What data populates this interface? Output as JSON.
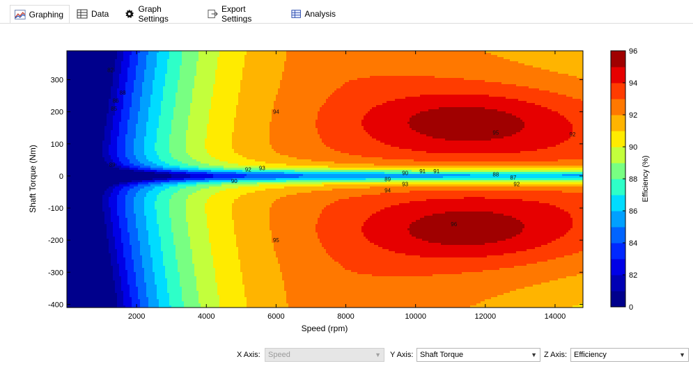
{
  "tabs": [
    {
      "label": "Graphing",
      "icon": "line-graph-icon",
      "active": true
    },
    {
      "label": "Data",
      "icon": "table-icon",
      "active": false
    },
    {
      "label": "Graph Settings",
      "icon": "gear-icon",
      "active": false
    },
    {
      "label": "Export Settings",
      "icon": "export-icon",
      "active": false
    },
    {
      "label": "Analysis",
      "icon": "analysis-icon",
      "active": false
    }
  ],
  "controls": {
    "x_axis_label": "X Axis:",
    "x_axis_value": "Speed",
    "y_axis_label": "Y Axis:",
    "y_axis_value": "Shaft Torque",
    "z_axis_label": "Z Axis:",
    "z_axis_value": "Efficiency"
  },
  "chart_data": {
    "type": "heatmap",
    "title": "",
    "xlabel": "Speed  (rpm)",
    "ylabel": "Shaft Torque  (Nm)",
    "colorbar_label": "Efficiency (%)",
    "xlim": [
      0,
      14800
    ],
    "ylim": [
      -410,
      390
    ],
    "x_ticks": [
      2000,
      4000,
      6000,
      8000,
      10000,
      12000,
      14000
    ],
    "y_ticks": [
      300,
      200,
      100,
      0,
      -100,
      -200,
      -300,
      -400
    ],
    "colorbar_ticks": [
      "96",
      "94",
      "92",
      "90",
      "88",
      "86",
      "84",
      "82",
      "0"
    ],
    "contour_levels": [
      0,
      82,
      83,
      84,
      85,
      86,
      87,
      88,
      89,
      90,
      91,
      92,
      93,
      94,
      95,
      96
    ],
    "level_colors": [
      "#00008c",
      "#0000b4",
      "#0000e6",
      "#0028ff",
      "#0064ff",
      "#00a0ff",
      "#00dcff",
      "#2effc8",
      "#78ff82",
      "#c3ff3c",
      "#ffeb00",
      "#ffb400",
      "#ff7800",
      "#ff3c00",
      "#e60000",
      "#a00000"
    ],
    "key_points": [
      {
        "speed": 500,
        "torque": 0,
        "efficiency": 0
      },
      {
        "speed": 1500,
        "torque": 0,
        "efficiency": 88
      },
      {
        "speed": 2500,
        "torque": 0,
        "efficiency": 89
      },
      {
        "speed": 5000,
        "torque": 0,
        "efficiency": 90
      },
      {
        "speed": 9000,
        "torque": 0,
        "efficiency": 89
      },
      {
        "speed": 12500,
        "torque": 0,
        "efficiency": 87
      },
      {
        "speed": 11000,
        "torque": 170,
        "efficiency": 96
      },
      {
        "speed": 11000,
        "torque": -160,
        "efficiency": 96
      },
      {
        "speed": 6000,
        "torque": 200,
        "efficiency": 94
      },
      {
        "speed": 6000,
        "torque": -200,
        "efficiency": 94
      },
      {
        "speed": 14500,
        "torque": 300,
        "efficiency": 92
      },
      {
        "speed": 14500,
        "torque": -300,
        "efficiency": 92
      }
    ],
    "contour_labels": [
      "82",
      "85",
      "86",
      "88",
      "89",
      "90",
      "92",
      "93",
      "94",
      "95",
      "90",
      "91",
      "89",
      "93",
      "94",
      "88",
      "87",
      "92",
      "91",
      "96",
      "95",
      "92"
    ],
    "grid": false,
    "colorbar_placement": "right"
  }
}
